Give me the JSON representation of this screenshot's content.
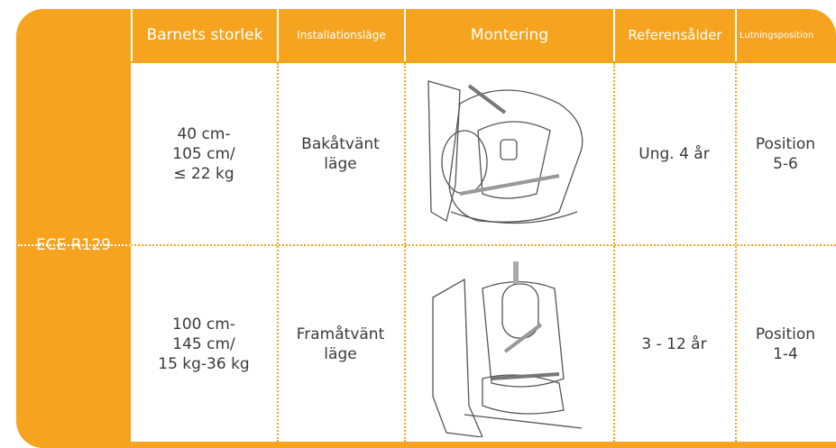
{
  "row_header": "ECE R129",
  "columns": [
    "Barnets storlek",
    "Installationsläge",
    "Montering",
    "Referensålder",
    "Lutningsposition"
  ],
  "rows": [
    {
      "size": [
        "40 cm-",
        "105 cm/",
        "≤ 22 kg"
      ],
      "installation": [
        "Bakåtvänt",
        "läge"
      ],
      "age": "Ung. 4 år",
      "recline": [
        "Position",
        "5-6"
      ]
    },
    {
      "size": [
        "100 cm-",
        "145 cm/",
        "15 kg-36 kg"
      ],
      "installation": [
        "Framåtvänt",
        "läge"
      ],
      "age": "3 - 12 år",
      "recline": [
        "Position",
        "1-4"
      ]
    }
  ]
}
